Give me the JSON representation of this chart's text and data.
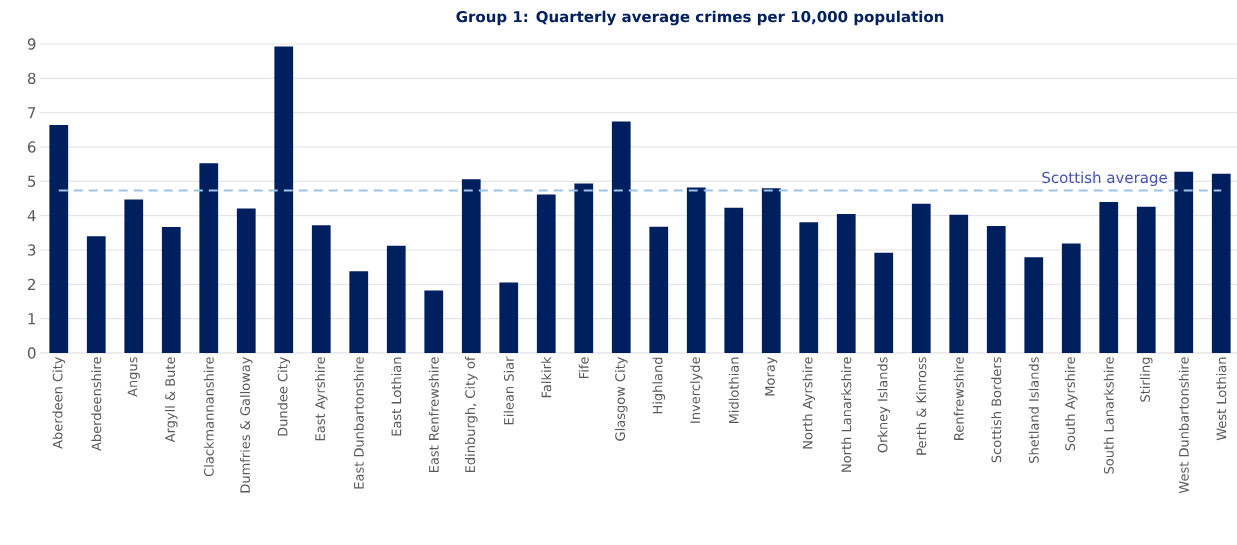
{
  "chart_data": {
    "type": "bar",
    "title": "Group 1: Quarterly average crimes per 10,000 population",
    "categories": [
      "Aberdeen City",
      "Aberdeenshire",
      "Angus",
      "Argyll & Bute",
      "Clackmannanshire",
      "Dumfries & Galloway",
      "Dundee City",
      "East Ayrshire",
      "East Dunbartonshire",
      "East Lothian",
      "East Renfrewshire",
      "Edinburgh, City of",
      "Eilean Siar",
      "Falkirk",
      "Fife",
      "Glasgow City",
      "Highland",
      "Inverclyde",
      "Midlothian",
      "Moray",
      "North Ayrshire",
      "North Lanarkshire",
      "Orkney Islands",
      "Perth & Kinross",
      "Renfrewshire",
      "Scottish Borders",
      "Shetland Islands",
      "South Ayrshire",
      "South Lanarkshire",
      "Stirling",
      "West Dunbartonshire",
      "West Lothian"
    ],
    "values": [
      6.64,
      3.4,
      4.47,
      3.67,
      5.53,
      4.21,
      8.93,
      3.72,
      2.38,
      3.12,
      1.82,
      5.06,
      2.05,
      4.62,
      4.94,
      6.74,
      3.68,
      4.82,
      4.23,
      4.8,
      3.81,
      4.05,
      2.92,
      4.35,
      4.03,
      3.7,
      2.79,
      3.19,
      4.4,
      4.26,
      5.28,
      5.22
    ],
    "color": "#001f5f",
    "ylim": [
      0,
      9
    ],
    "yticks": [
      0,
      1,
      2,
      3,
      4,
      5,
      6,
      7,
      8,
      9
    ],
    "grid": "y",
    "ref_lines": [
      {
        "axis": "y",
        "value": 4.73,
        "label": "Scottish average",
        "color": "#9dc3e6",
        "line_style": "dashed"
      }
    ]
  }
}
